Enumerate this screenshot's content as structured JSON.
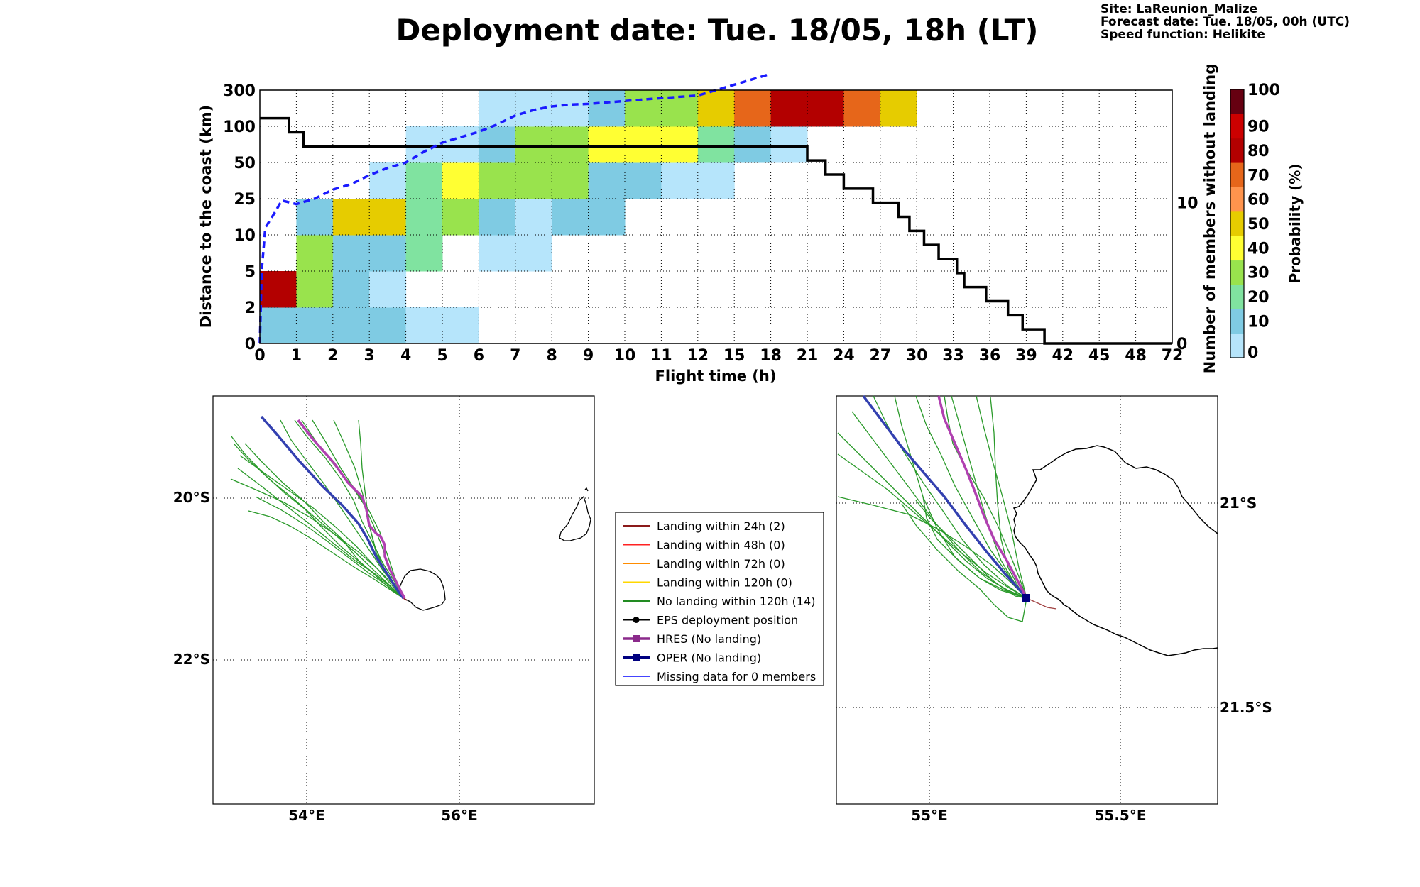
{
  "title": "Deployment date: Tue. 18/05, 18h (LT)",
  "info": {
    "site": "Site: LaReunion_Malize",
    "forecast": "Forecast date: Tue. 18/05, 00h (UTC)",
    "speed": "Speed function: Helikite"
  },
  "chart_data": [
    {
      "type": "heatmap",
      "xlabel": "Flight time (h)",
      "ylabel": "Distance to the coast (km)",
      "y2label": "Number of members without landing",
      "x_ticks": [
        "0",
        "1",
        "2",
        "3",
        "4",
        "5",
        "6",
        "7",
        "8",
        "9",
        "10",
        "11",
        "12",
        "15",
        "18",
        "21",
        "24",
        "27",
        "30",
        "33",
        "36",
        "39",
        "42",
        "45",
        "48",
        "72"
      ],
      "y_ticks": [
        "0",
        "2",
        "5",
        "10",
        "25",
        "50",
        "100",
        "300"
      ],
      "y2_ticks": [
        "0",
        "10"
      ],
      "y2lim": [
        0,
        18
      ],
      "colorbar": {
        "label": "Probability (%)",
        "ticks": [
          "0",
          "10",
          "20",
          "30",
          "40",
          "50",
          "60",
          "70",
          "80",
          "90",
          "100"
        ],
        "colors": [
          "#b6e5fb",
          "#7fcbe3",
          "#80e3a0",
          "#99e34d",
          "#ffff33",
          "#e6cc00",
          "#ff944d",
          "#e6661a",
          "#b30000",
          "#cc0000",
          "#660011"
        ]
      },
      "cells": [
        [
          0,
          0,
          10
        ],
        [
          1,
          0,
          10
        ],
        [
          2,
          0,
          10
        ],
        [
          3,
          0,
          10
        ],
        [
          4,
          0,
          0
        ],
        [
          5,
          0,
          0
        ],
        [
          0,
          1,
          80
        ],
        [
          1,
          1,
          30
        ],
        [
          2,
          1,
          10
        ],
        [
          3,
          1,
          0
        ],
        [
          1,
          2,
          30
        ],
        [
          2,
          2,
          10
        ],
        [
          3,
          2,
          10
        ],
        [
          4,
          2,
          20
        ],
        [
          6,
          2,
          0
        ],
        [
          7,
          2,
          0
        ],
        [
          1,
          3,
          10
        ],
        [
          2,
          3,
          50
        ],
        [
          3,
          3,
          50
        ],
        [
          4,
          3,
          20
        ],
        [
          5,
          3,
          30
        ],
        [
          6,
          3,
          10
        ],
        [
          7,
          3,
          0
        ],
        [
          8,
          3,
          10
        ],
        [
          9,
          3,
          10
        ],
        [
          3,
          4,
          0
        ],
        [
          4,
          4,
          20
        ],
        [
          5,
          4,
          40
        ],
        [
          6,
          4,
          30
        ],
        [
          7,
          4,
          30
        ],
        [
          8,
          4,
          30
        ],
        [
          9,
          4,
          10
        ],
        [
          10,
          4,
          10
        ],
        [
          11,
          4,
          0
        ],
        [
          12,
          4,
          0
        ],
        [
          4,
          5,
          0
        ],
        [
          5,
          5,
          0
        ],
        [
          6,
          5,
          10
        ],
        [
          7,
          5,
          30
        ],
        [
          8,
          5,
          30
        ],
        [
          9,
          5,
          40
        ],
        [
          10,
          5,
          40
        ],
        [
          11,
          5,
          40
        ],
        [
          12,
          5,
          20
        ],
        [
          13,
          5,
          10
        ],
        [
          14,
          5,
          0
        ],
        [
          6,
          6,
          0
        ],
        [
          7,
          6,
          0
        ],
        [
          8,
          6,
          0
        ],
        [
          9,
          6,
          10
        ],
        [
          10,
          6,
          30
        ],
        [
          11,
          6,
          30
        ],
        [
          12,
          6,
          50
        ],
        [
          13,
          6,
          70
        ],
        [
          14,
          6,
          80
        ],
        [
          15,
          6,
          80
        ],
        [
          16,
          6,
          70
        ],
        [
          17,
          6,
          50
        ]
      ],
      "members_without_landing": [
        [
          0,
          16
        ],
        [
          0.8,
          15
        ],
        [
          1.2,
          14
        ],
        [
          14.8,
          14
        ],
        [
          15,
          13
        ],
        [
          15.5,
          12
        ],
        [
          16,
          11
        ],
        [
          16.8,
          10
        ],
        [
          17.5,
          9
        ],
        [
          17.8,
          8
        ],
        [
          18.2,
          7
        ],
        [
          18.6,
          6
        ],
        [
          19.1,
          5
        ],
        [
          19.3,
          4
        ],
        [
          19.9,
          3
        ],
        [
          20.5,
          2
        ],
        [
          20.9,
          1
        ],
        [
          21.5,
          0
        ]
      ],
      "members_without_landing_note": "step values expressed on the visual index scale of the x axis",
      "blue_dashed": "cumulative distance profile"
    }
  ],
  "legend": {
    "items": [
      {
        "label": "Landing within 24h (2)",
        "color": "#8b1a1a",
        "marker": "none"
      },
      {
        "label": "Landing within 48h (0)",
        "color": "#ff2222",
        "marker": "none"
      },
      {
        "label": "Landing within 72h (0)",
        "color": "#ff8c00",
        "marker": "none"
      },
      {
        "label": "Landing within 120h (0)",
        "color": "#ffd700",
        "marker": "none"
      },
      {
        "label": "No landing within 120h (14)",
        "color": "#228b22",
        "marker": "none"
      },
      {
        "label": "EPS deployment position",
        "color": "#000000",
        "marker": "circle"
      },
      {
        "label": "HRES (No landing)",
        "color": "#8b2a8b",
        "marker": "square"
      },
      {
        "label": "OPER (No landing)",
        "color": "#000080",
        "marker": "square"
      },
      {
        "label": "Missing data for 0 members",
        "color": "#4444ff",
        "marker": "none"
      }
    ]
  },
  "map_left": {
    "lat_labels": [
      "20°S",
      "22°S"
    ],
    "lon_labels": [
      "54°E",
      "56°E"
    ]
  },
  "map_right": {
    "lat_labels": [
      "21°S",
      "21.5°S"
    ],
    "lon_labels": [
      "55°E",
      "55.5°E"
    ]
  }
}
